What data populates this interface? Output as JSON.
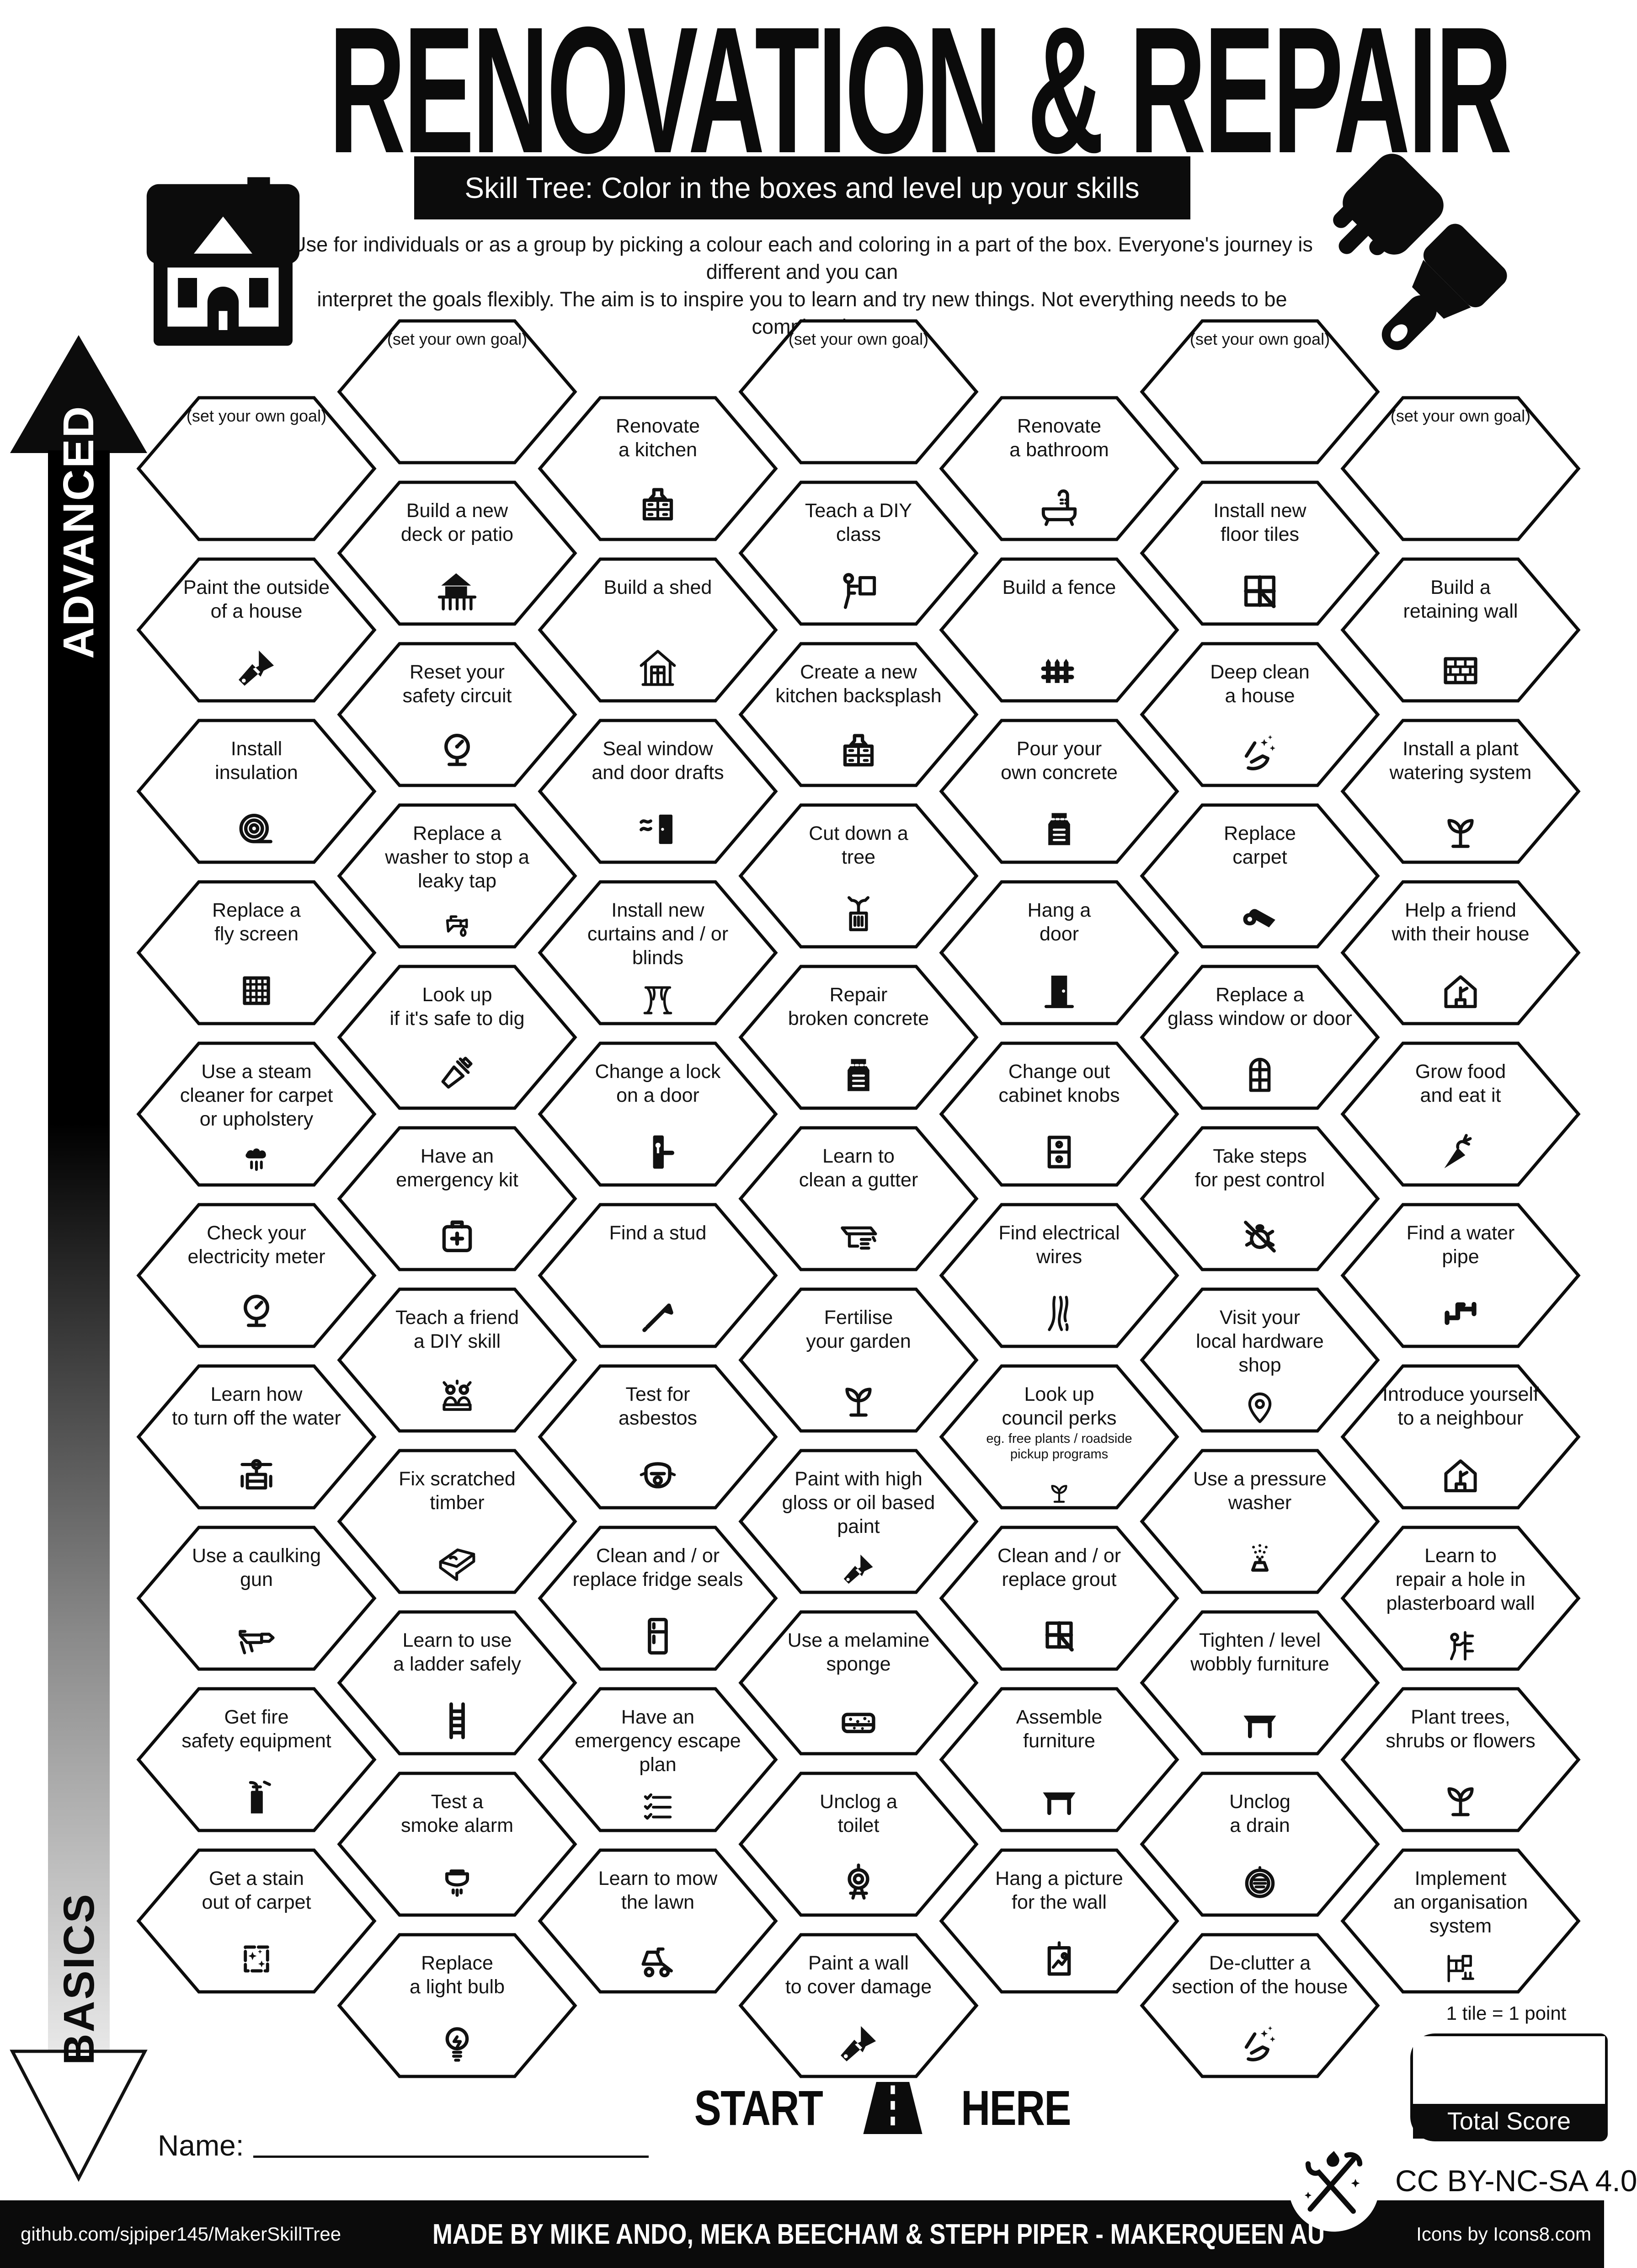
{
  "poster": {
    "title": "RENOVATION & REPAIR",
    "banner": "Skill Tree:  Color in the boxes and level up your skills",
    "description": [
      "Use for individuals or as a group by picking a colour each and coloring in a part of the box.  Everyone's journey is different and you can",
      "interpret the goals flexibly.  The aim is to inspire you to learn and try new things. Not everything needs to be completed."
    ]
  },
  "axis": {
    "advanced": "ADVANCED",
    "basics": "BASICS"
  },
  "start": {
    "start": "START",
    "here": "HERE"
  },
  "name_label": "Name:",
  "score": {
    "note": "1 tile = 1 point",
    "total": "Total Score"
  },
  "license": "CC BY-NC-SA 4.0",
  "footer": {
    "left": "github.com/sjpiper145/MakerSkillTree",
    "center": "MADE BY MIKE ANDO, MEKA BEECHAM & STEPH PIPER  -  MAKERQUEEN AU",
    "right": "Icons by Icons8.com"
  },
  "tiles": [
    {
      "col": 1,
      "row": 0,
      "goal": true,
      "lines": [
        "(set your own goal)"
      ],
      "icon": null
    },
    {
      "col": 1,
      "row": 1,
      "lines": [
        "Paint the outside",
        "of a house"
      ],
      "icon": "paintbrush-icon"
    },
    {
      "col": 1,
      "row": 2,
      "lines": [
        "Install",
        "insulation"
      ],
      "icon": "insulation-icon"
    },
    {
      "col": 1,
      "row": 3,
      "lines": [
        "Replace a",
        "fly screen"
      ],
      "icon": "fly-screen-icon"
    },
    {
      "col": 1,
      "row": 4,
      "lines": [
        "Use a steam",
        "cleaner for carpet",
        "or upholstery"
      ],
      "icon": "steam-cleaner-icon"
    },
    {
      "col": 1,
      "row": 5,
      "lines": [
        "Check your",
        "electricity meter"
      ],
      "icon": "electricity-meter-icon"
    },
    {
      "col": 1,
      "row": 6,
      "lines": [
        "Learn how",
        "to turn off the water"
      ],
      "icon": "water-valve-icon"
    },
    {
      "col": 1,
      "row": 7,
      "lines": [
        "Use a caulking",
        "gun"
      ],
      "icon": "caulking-gun-icon"
    },
    {
      "col": 1,
      "row": 8,
      "lines": [
        "Get fire",
        "safety equipment"
      ],
      "icon": "fire-extinguisher-icon"
    },
    {
      "col": 1,
      "row": 9,
      "lines": [
        "Get a stain",
        "out of carpet"
      ],
      "icon": "stain-sparkle-icon"
    },
    {
      "col": 2,
      "row": 0,
      "goal": true,
      "lines": [
        "(set your own goal)"
      ],
      "icon": null
    },
    {
      "col": 2,
      "row": 1,
      "lines": [
        "Build a new",
        "deck or patio"
      ],
      "icon": "deck-icon"
    },
    {
      "col": 2,
      "row": 2,
      "lines": [
        "Reset your",
        "safety circuit"
      ],
      "icon": "safety-gauge-icon"
    },
    {
      "col": 2,
      "row": 3,
      "lines": [
        "Replace a",
        "washer to stop a",
        "leaky tap"
      ],
      "icon": "leaky-tap-icon"
    },
    {
      "col": 2,
      "row": 4,
      "lines": [
        "Look up",
        "if it's safe to dig"
      ],
      "icon": "shovel-icon"
    },
    {
      "col": 2,
      "row": 5,
      "lines": [
        "Have an",
        "emergency kit"
      ],
      "icon": "first-aid-kit-icon"
    },
    {
      "col": 2,
      "row": 6,
      "lines": [
        "Teach a friend",
        "a DIY skill"
      ],
      "icon": "diy-people-icon"
    },
    {
      "col": 2,
      "row": 7,
      "lines": [
        "Fix scratched",
        "timber"
      ],
      "icon": "timber-plank-icon"
    },
    {
      "col": 2,
      "row": 8,
      "lines": [
        "Learn to use",
        "a ladder safely"
      ],
      "icon": "ladder-icon"
    },
    {
      "col": 2,
      "row": 9,
      "lines": [
        "Test a",
        "smoke alarm"
      ],
      "icon": "smoke-alarm-icon"
    },
    {
      "col": 2,
      "row": 10,
      "lines": [
        "Replace",
        "a light bulb"
      ],
      "icon": "light-bulb-icon"
    },
    {
      "col": 3,
      "row": 0,
      "lines": [
        "Renovate",
        "a kitchen"
      ],
      "icon": "kitchen-cabinet-icon"
    },
    {
      "col": 3,
      "row": 1,
      "lines": [
        "Build a shed"
      ],
      "icon": "shed-icon"
    },
    {
      "col": 3,
      "row": 2,
      "lines": [
        "Seal window",
        "and door drafts"
      ],
      "icon": "door-draft-icon"
    },
    {
      "col": 3,
      "row": 3,
      "lines": [
        "Install new",
        "curtains and / or",
        "blinds"
      ],
      "icon": "curtains-icon"
    },
    {
      "col": 3,
      "row": 4,
      "lines": [
        "Change a lock",
        "on a door"
      ],
      "icon": "door-lock-icon"
    },
    {
      "col": 3,
      "row": 5,
      "lines": [
        "Find a stud"
      ],
      "icon": "nail-icon"
    },
    {
      "col": 3,
      "row": 6,
      "lines": [
        "Test for",
        "asbestos"
      ],
      "icon": "respirator-mask-icon"
    },
    {
      "col": 3,
      "row": 7,
      "lines": [
        "Clean and / or",
        "replace fridge seals"
      ],
      "icon": "fridge-icon"
    },
    {
      "col": 3,
      "row": 8,
      "lines": [
        "Have an",
        "emergency escape",
        "plan"
      ],
      "icon": "checklist-icon"
    },
    {
      "col": 3,
      "row": 9,
      "lines": [
        "Learn to mow",
        "the lawn"
      ],
      "icon": "lawn-mower-icon"
    },
    {
      "col": 4,
      "row": 0,
      "goal": true,
      "lines": [
        "(set your own goal)"
      ],
      "icon": null
    },
    {
      "col": 4,
      "row": 1,
      "lines": [
        "Teach a DIY",
        "class"
      ],
      "icon": "presenter-icon"
    },
    {
      "col": 4,
      "row": 2,
      "lines": [
        "Create a new",
        "kitchen backsplash"
      ],
      "icon": "kitchen-cabinet-icon"
    },
    {
      "col": 4,
      "row": 3,
      "lines": [
        "Cut down a",
        "tree"
      ],
      "icon": "tree-stump-icon"
    },
    {
      "col": 4,
      "row": 4,
      "lines": [
        "Repair",
        "broken concrete"
      ],
      "icon": "concrete-bag-icon"
    },
    {
      "col": 4,
      "row": 5,
      "lines": [
        "Learn to",
        "clean a gutter"
      ],
      "icon": "gutter-icon"
    },
    {
      "col": 4,
      "row": 6,
      "lines": [
        "Fertilise",
        "your garden"
      ],
      "icon": "plant-icon"
    },
    {
      "col": 4,
      "row": 7,
      "lines": [
        "Paint with high",
        "gloss or oil based",
        "paint"
      ],
      "icon": "paintbrush-icon"
    },
    {
      "col": 4,
      "row": 8,
      "lines": [
        "Use a melamine",
        "sponge"
      ],
      "icon": "sponge-icon"
    },
    {
      "col": 4,
      "row": 9,
      "lines": [
        "Unclog a",
        "toilet"
      ],
      "icon": "toilet-icon"
    },
    {
      "col": 4,
      "row": 10,
      "lines": [
        "Paint a wall",
        "to cover damage"
      ],
      "icon": "paintbrush-icon"
    },
    {
      "col": 5,
      "row": 0,
      "lines": [
        "Renovate",
        "a bathroom"
      ],
      "icon": "bathtub-icon"
    },
    {
      "col": 5,
      "row": 1,
      "lines": [
        "Build a fence"
      ],
      "icon": "fence-icon"
    },
    {
      "col": 5,
      "row": 2,
      "lines": [
        "Pour your",
        "own concrete"
      ],
      "icon": "concrete-bag-icon"
    },
    {
      "col": 5,
      "row": 3,
      "lines": [
        "Hang a",
        "door"
      ],
      "icon": "door-icon"
    },
    {
      "col": 5,
      "row": 4,
      "lines": [
        "Change out",
        "cabinet knobs"
      ],
      "icon": "drawer-knobs-icon"
    },
    {
      "col": 5,
      "row": 5,
      "lines": [
        "Find electrical",
        "wires"
      ],
      "icon": "wires-icon"
    },
    {
      "col": 5,
      "row": 6,
      "lines": [
        "Look up",
        "council perks"
      ],
      "sub": [
        "eg. free plants / roadside",
        "pickup programs"
      ],
      "icon": "plant-icon"
    },
    {
      "col": 5,
      "row": 7,
      "lines": [
        "Clean and / or",
        "replace grout"
      ],
      "icon": "grout-window-icon"
    },
    {
      "col": 5,
      "row": 8,
      "lines": [
        "Assemble",
        "furniture"
      ],
      "icon": "furniture-table-icon"
    },
    {
      "col": 5,
      "row": 9,
      "lines": [
        "Hang a picture",
        "for the wall"
      ],
      "icon": "picture-frame-icon"
    },
    {
      "col": 6,
      "row": 0,
      "goal": true,
      "lines": [
        "(set your own goal)"
      ],
      "icon": null
    },
    {
      "col": 6,
      "row": 1,
      "lines": [
        "Install new",
        "floor tiles"
      ],
      "icon": "floor-tiles-icon"
    },
    {
      "col": 6,
      "row": 2,
      "lines": [
        "Deep clean",
        "a house"
      ],
      "icon": "sparkle-hand-icon"
    },
    {
      "col": 6,
      "row": 3,
      "lines": [
        "Replace",
        "carpet"
      ],
      "icon": "carpet-roll-icon"
    },
    {
      "col": 6,
      "row": 4,
      "lines": [
        "Replace a",
        "glass window or door"
      ],
      "icon": "arch-window-icon"
    },
    {
      "col": 6,
      "row": 5,
      "lines": [
        "Take steps",
        "for pest control"
      ],
      "icon": "pest-bug-icon"
    },
    {
      "col": 6,
      "row": 6,
      "lines": [
        "Visit your",
        "local hardware",
        "shop"
      ],
      "icon": "location-pin-icon"
    },
    {
      "col": 6,
      "row": 7,
      "lines": [
        "Use a pressure",
        "washer"
      ],
      "icon": "pressure-washer-icon"
    },
    {
      "col": 6,
      "row": 8,
      "lines": [
        "Tighten / level",
        "wobbly furniture"
      ],
      "icon": "furniture-table-icon"
    },
    {
      "col": 6,
      "row": 9,
      "lines": [
        "Unclog",
        "a drain"
      ],
      "icon": "drain-icon"
    },
    {
      "col": 6,
      "row": 10,
      "lines": [
        "De-clutter a",
        "section of the house"
      ],
      "icon": "sparkle-hand-icon"
    },
    {
      "col": 7,
      "row": 0,
      "goal": true,
      "lines": [
        "(set your own goal)"
      ],
      "icon": null
    },
    {
      "col": 7,
      "row": 1,
      "lines": [
        "Build a",
        "retaining wall"
      ],
      "icon": "brick-wall-icon"
    },
    {
      "col": 7,
      "row": 2,
      "lines": [
        "Install a plant",
        "watering system"
      ],
      "icon": "plant-icon"
    },
    {
      "col": 7,
      "row": 3,
      "lines": [
        "Help a friend",
        "with their house"
      ],
      "icon": "house-person-icon"
    },
    {
      "col": 7,
      "row": 4,
      "lines": [
        "Grow food",
        "and eat it"
      ],
      "icon": "carrot-icon"
    },
    {
      "col": 7,
      "row": 5,
      "lines": [
        "Find a water",
        "pipe"
      ],
      "icon": "water-pipe-icon"
    },
    {
      "col": 7,
      "row": 6,
      "lines": [
        "Introduce yourself",
        "to a neighbour"
      ],
      "icon": "house-person-icon"
    },
    {
      "col": 7,
      "row": 7,
      "lines": [
        "Learn to",
        "repair a hole in",
        "plasterboard wall"
      ],
      "icon": "person-wall-icon"
    },
    {
      "col": 7,
      "row": 8,
      "lines": [
        "Plant trees,",
        "shrubs or flowers"
      ],
      "icon": "plant-icon"
    },
    {
      "col": 7,
      "row": 9,
      "lines": [
        "Implement",
        "an organisation",
        "system"
      ],
      "icon": "shelf-icon"
    }
  ]
}
